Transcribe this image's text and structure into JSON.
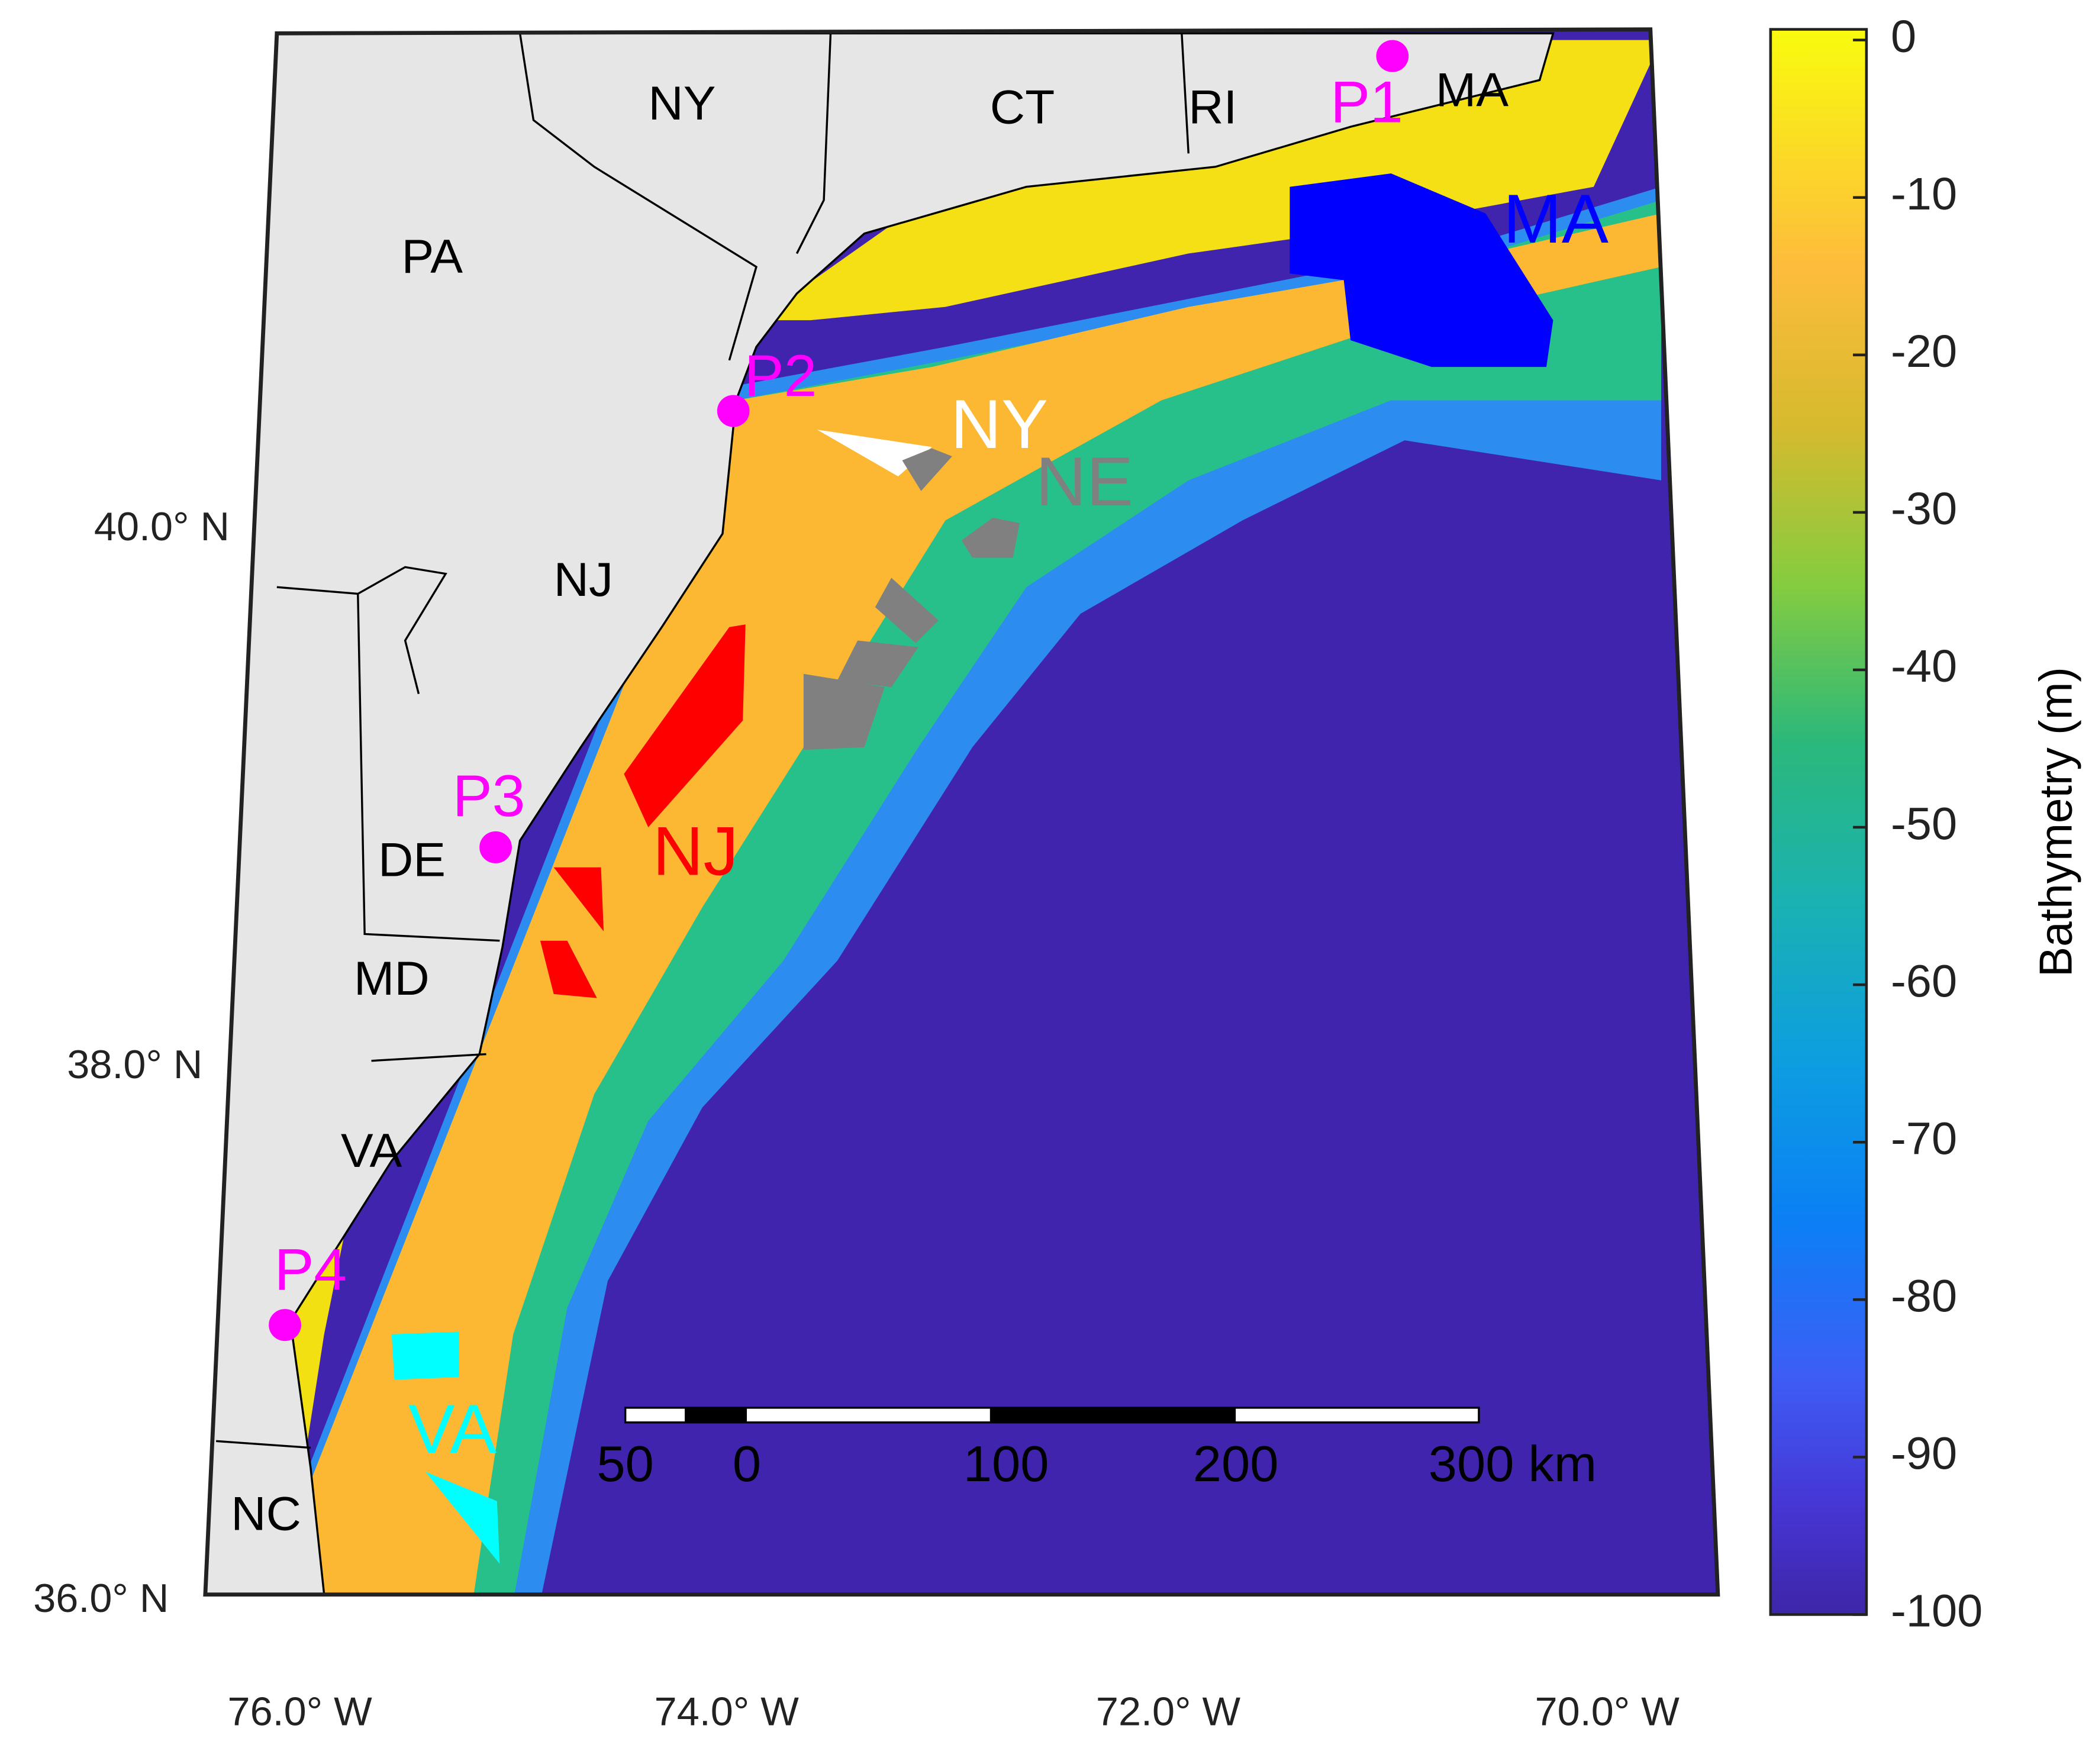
{
  "map": {
    "lat_labels": [
      "40.0° N",
      "38.0° N",
      "36.0° N"
    ],
    "lon_labels": [
      "76.0° W",
      "74.0° W",
      "72.0° W",
      "70.0° W"
    ],
    "state_labels": [
      "NY",
      "CT",
      "RI",
      "MA",
      "PA",
      "NJ",
      "DE",
      "MD",
      "VA",
      "NC"
    ],
    "wind_areas": [
      {
        "label": "MA",
        "color": "#0000ff"
      },
      {
        "label": "NY",
        "color": "#ffffff"
      },
      {
        "label": "NE",
        "color": "#808080"
      },
      {
        "label": "NJ",
        "color": "#ff0000"
      },
      {
        "label": "VA",
        "color": "#00ffff"
      }
    ],
    "points": {
      "labels": [
        "P1",
        "P2",
        "P3",
        "P4"
      ],
      "color": "#ff00ff"
    },
    "scale_bar": {
      "labels": [
        "50",
        "0",
        "100",
        "200",
        "300 km"
      ]
    }
  },
  "colorbar": {
    "label": "Bathymetry (m)",
    "lim": [
      -100,
      0
    ],
    "ticks": [
      0,
      -10,
      -20,
      -30,
      -40,
      -50,
      -60,
      -70,
      -80,
      -90,
      -100
    ]
  }
}
